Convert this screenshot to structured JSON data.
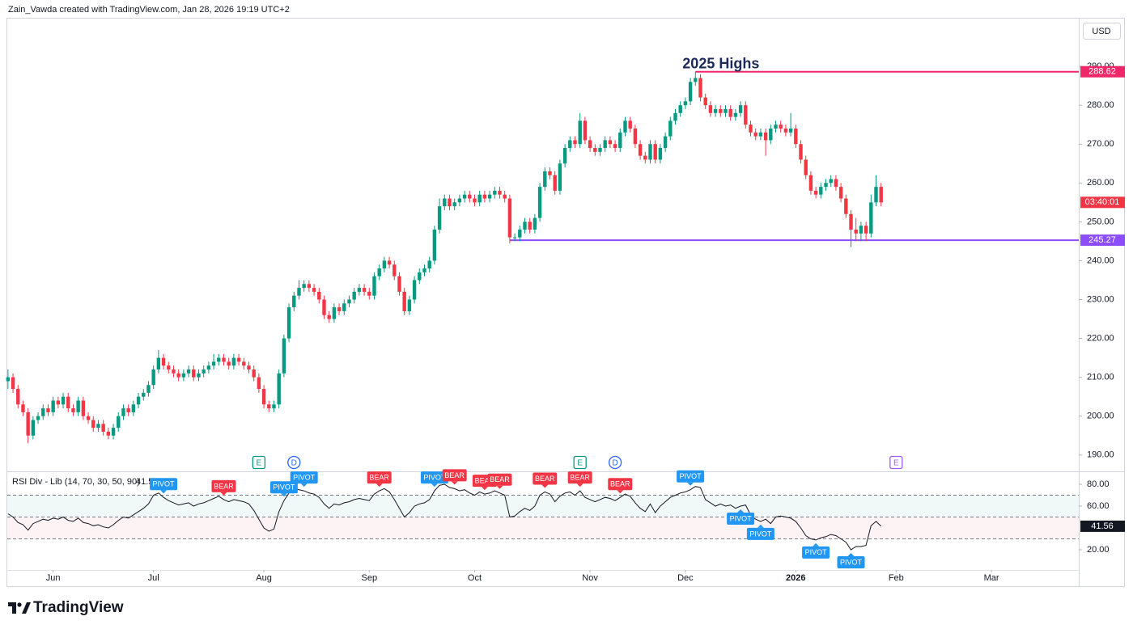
{
  "header": {
    "credit": "Zain_Vawda created with TradingView.com, Jan 28, 2026 19:19 UTC+2"
  },
  "chart_data": {
    "type": "candlestick",
    "currency": "USD",
    "up_color": "#089981",
    "down_color": "#f23645",
    "candles": [
      [
        209,
        212,
        207,
        210
      ],
      [
        210,
        211,
        206,
        207
      ],
      [
        207,
        208,
        202,
        203
      ],
      [
        203,
        204,
        200,
        201
      ],
      [
        201,
        202,
        193,
        195
      ],
      [
        195,
        200,
        194,
        199
      ],
      [
        199,
        201,
        198,
        200
      ],
      [
        200,
        203,
        199,
        202
      ],
      [
        202,
        203,
        200,
        201
      ],
      [
        201,
        205,
        200,
        204
      ],
      [
        204,
        205,
        202,
        203
      ],
      [
        203,
        206,
        202,
        205
      ],
      [
        205,
        206,
        201,
        202
      ],
      [
        202,
        203,
        200,
        201
      ],
      [
        201,
        205,
        200,
        204
      ],
      [
        204,
        205,
        199,
        200
      ],
      [
        200,
        201,
        198,
        199
      ],
      [
        199,
        200,
        196,
        197
      ],
      [
        197,
        199,
        196,
        198
      ],
      [
        198,
        199,
        195,
        196
      ],
      [
        196,
        197,
        194,
        195
      ],
      [
        195,
        198,
        194,
        197
      ],
      [
        197,
        201,
        196,
        200
      ],
      [
        200,
        203,
        199,
        202
      ],
      [
        202,
        203,
        200,
        201
      ],
      [
        201,
        204,
        200,
        203
      ],
      [
        203,
        206,
        202,
        205
      ],
      [
        205,
        207,
        204,
        206
      ],
      [
        206,
        209,
        205,
        208
      ],
      [
        208,
        213,
        207,
        212
      ],
      [
        212,
        217,
        211,
        215
      ],
      [
        215,
        216,
        212,
        213
      ],
      [
        213,
        214,
        211,
        212
      ],
      [
        212,
        213,
        210,
        211
      ],
      [
        211,
        212,
        209,
        210
      ],
      [
        210,
        212,
        209,
        211
      ],
      [
        211,
        213,
        210,
        212
      ],
      [
        212,
        213,
        209,
        210
      ],
      [
        210,
        212,
        209,
        211
      ],
      [
        211,
        213,
        210,
        212
      ],
      [
        212,
        214,
        211,
        213
      ],
      [
        213,
        216,
        212,
        214
      ],
      [
        214,
        216,
        213,
        215
      ],
      [
        215,
        216,
        213,
        214
      ],
      [
        214,
        215,
        212,
        213
      ],
      [
        213,
        216,
        212,
        215
      ],
      [
        215,
        216,
        213,
        214
      ],
      [
        214,
        215,
        212,
        213
      ],
      [
        213,
        214,
        211,
        212
      ],
      [
        212,
        213,
        209,
        210
      ],
      [
        210,
        211,
        206,
        207
      ],
      [
        207,
        208,
        202,
        203
      ],
      [
        203,
        204,
        201,
        202
      ],
      [
        202,
        204,
        201,
        203
      ],
      [
        203,
        212,
        202,
        211
      ],
      [
        211,
        221,
        210,
        220
      ],
      [
        220,
        229,
        219,
        228
      ],
      [
        228,
        232,
        227,
        231
      ],
      [
        231,
        235,
        230,
        233
      ],
      [
        233,
        235,
        232,
        234
      ],
      [
        234,
        235,
        232,
        233
      ],
      [
        233,
        234,
        231,
        232
      ],
      [
        232,
        233,
        229,
        230
      ],
      [
        230,
        231,
        225,
        226
      ],
      [
        226,
        227,
        224,
        225
      ],
      [
        225,
        229,
        224,
        228
      ],
      [
        228,
        229,
        226,
        227
      ],
      [
        227,
        230,
        226,
        229
      ],
      [
        229,
        231,
        228,
        230
      ],
      [
        230,
        233,
        229,
        232
      ],
      [
        232,
        234,
        231,
        233
      ],
      [
        233,
        234,
        231,
        232
      ],
      [
        232,
        233,
        230,
        231
      ],
      [
        231,
        237,
        230,
        236
      ],
      [
        236,
        239,
        235,
        238
      ],
      [
        238,
        241,
        237,
        240
      ],
      [
        240,
        241,
        238,
        239
      ],
      [
        239,
        240,
        235,
        236
      ],
      [
        236,
        237,
        231,
        232
      ],
      [
        232,
        233,
        226,
        227
      ],
      [
        227,
        231,
        226,
        230
      ],
      [
        230,
        236,
        229,
        235
      ],
      [
        235,
        238,
        234,
        237
      ],
      [
        237,
        239,
        236,
        238
      ],
      [
        238,
        241,
        237,
        240
      ],
      [
        240,
        249,
        239,
        248
      ],
      [
        248,
        256,
        247,
        254
      ],
      [
        254,
        257,
        253,
        256
      ],
      [
        256,
        257,
        253,
        254
      ],
      [
        254,
        256,
        253,
        255
      ],
      [
        255,
        257,
        254,
        256
      ],
      [
        256,
        258,
        255,
        257
      ],
      [
        257,
        258,
        255,
        256
      ],
      [
        256,
        257,
        254,
        255
      ],
      [
        255,
        258,
        254,
        257
      ],
      [
        257,
        258,
        255,
        256
      ],
      [
        256,
        258,
        255,
        257
      ],
      [
        257,
        259,
        256,
        258
      ],
      [
        258,
        259,
        256,
        257
      ],
      [
        257,
        258,
        255,
        256
      ],
      [
        256,
        257,
        244.5,
        246
      ],
      [
        246,
        247,
        245,
        246
      ],
      [
        246,
        249,
        245,
        248
      ],
      [
        248,
        251,
        247,
        250
      ],
      [
        250,
        251,
        247,
        248
      ],
      [
        248,
        252,
        247,
        251
      ],
      [
        251,
        260,
        250,
        259
      ],
      [
        259,
        264,
        258,
        263
      ],
      [
        263,
        264,
        261,
        262
      ],
      [
        262,
        263,
        257,
        258
      ],
      [
        258,
        266,
        257,
        265
      ],
      [
        265,
        270,
        264,
        269
      ],
      [
        269,
        272,
        268,
        271
      ],
      [
        271,
        272,
        269,
        270
      ],
      [
        270,
        278,
        269,
        276
      ],
      [
        276,
        277,
        270,
        271
      ],
      [
        271,
        272,
        268,
        269
      ],
      [
        269,
        270,
        267,
        268
      ],
      [
        268,
        270,
        267,
        269
      ],
      [
        269,
        272,
        268,
        271
      ],
      [
        271,
        272,
        269,
        270
      ],
      [
        270,
        271,
        268,
        269
      ],
      [
        269,
        274,
        268,
        273
      ],
      [
        273,
        277,
        272,
        276
      ],
      [
        276,
        277,
        273,
        274
      ],
      [
        274,
        275,
        269,
        270
      ],
      [
        270,
        271,
        266,
        267
      ],
      [
        267,
        268,
        265,
        266
      ],
      [
        266,
        271,
        265,
        270
      ],
      [
        270,
        271,
        265,
        266
      ],
      [
        266,
        270,
        265,
        269
      ],
      [
        269,
        273,
        268,
        272
      ],
      [
        272,
        277,
        271,
        276
      ],
      [
        276,
        279,
        275,
        278
      ],
      [
        278,
        281,
        277,
        280
      ],
      [
        280,
        282,
        279,
        281
      ],
      [
        281,
        287,
        280,
        286
      ],
      [
        286,
        288.62,
        285,
        287
      ],
      [
        287,
        288,
        281,
        282
      ],
      [
        282,
        283,
        279,
        280
      ],
      [
        280,
        281,
        277,
        278
      ],
      [
        278,
        280,
        277,
        279
      ],
      [
        279,
        280,
        277,
        278
      ],
      [
        278,
        280,
        277,
        279
      ],
      [
        279,
        280,
        276,
        277
      ],
      [
        277,
        279,
        276,
        278
      ],
      [
        278,
        281,
        277,
        280
      ],
      [
        280,
        281,
        274,
        275
      ],
      [
        275,
        276,
        272,
        273
      ],
      [
        273,
        274,
        271,
        272
      ],
      [
        272,
        274,
        271,
        273
      ],
      [
        273,
        274,
        267,
        271
      ],
      [
        271,
        275,
        270,
        274
      ],
      [
        274,
        276,
        273,
        275
      ],
      [
        275,
        276,
        273,
        274
      ],
      [
        274,
        275,
        272,
        273
      ],
      [
        273,
        278,
        272,
        274
      ],
      [
        274,
        275,
        269,
        270
      ],
      [
        270,
        271,
        265,
        266
      ],
      [
        266,
        267,
        261,
        262
      ],
      [
        262,
        263,
        257,
        258
      ],
      [
        258,
        259,
        256,
        257
      ],
      [
        257,
        260,
        256,
        259
      ],
      [
        259,
        261,
        258,
        260
      ],
      [
        260,
        262,
        259,
        261
      ],
      [
        261,
        262,
        258,
        259
      ],
      [
        259,
        260,
        255,
        256
      ],
      [
        256,
        257,
        251,
        252
      ],
      [
        252,
        253,
        243.5,
        248
      ],
      [
        248,
        251,
        245,
        247
      ],
      [
        247,
        250,
        245,
        249
      ],
      [
        249,
        250,
        245,
        247
      ],
      [
        247,
        257,
        246,
        255
      ],
      [
        255,
        262,
        254,
        259
      ],
      [
        259,
        260,
        254,
        255
      ]
    ],
    "xlim": [
      -0.3,
      213.4
    ],
    "xticks": [
      {
        "value": 9,
        "label": "Jun"
      },
      {
        "value": 29,
        "label": "Jul"
      },
      {
        "value": 51,
        "label": "Aug"
      },
      {
        "value": 72,
        "label": "Sep"
      },
      {
        "value": 93,
        "label": "Oct"
      },
      {
        "value": 116,
        "label": "Nov"
      },
      {
        "value": 135,
        "label": "Dec"
      },
      {
        "value": 157,
        "label": "2026",
        "bold": true
      },
      {
        "value": 177,
        "label": "Feb"
      },
      {
        "value": 196,
        "label": "Mar"
      }
    ],
    "ylim": [
      186,
      302.5
    ],
    "yticks": [
      {
        "value": 190,
        "label": "190.00"
      },
      {
        "value": 200,
        "label": "200.00"
      },
      {
        "value": 210,
        "label": "210.00"
      },
      {
        "value": 220,
        "label": "220.00"
      },
      {
        "value": 230,
        "label": "230.00"
      },
      {
        "value": 240,
        "label": "240.00"
      },
      {
        "value": 250,
        "label": "250.00"
      },
      {
        "value": 260,
        "label": "260.00"
      },
      {
        "value": 270,
        "label": "270.00"
      },
      {
        "value": 280,
        "label": "280.00"
      },
      {
        "value": 290,
        "label": "290.00"
      }
    ],
    "levels": [
      {
        "value": 288.62,
        "color": "#f0286a",
        "from": 137,
        "text": "2025 Highs"
      },
      {
        "value": 245.27,
        "color": "#8c4dfa",
        "from": 100
      }
    ],
    "countdown": "03:40:01",
    "events": [
      {
        "label": "E",
        "x": 50,
        "kind": "earnings",
        "color": "#089981"
      },
      {
        "label": "D",
        "x": 57,
        "kind": "dividend",
        "color": "#2962ff"
      },
      {
        "label": "E",
        "x": 114,
        "kind": "earnings",
        "color": "#089981"
      },
      {
        "label": "D",
        "x": 121,
        "kind": "dividend",
        "color": "#2962ff"
      },
      {
        "label": "E",
        "x": 177,
        "kind": "earnings",
        "color": "#9c5cf5"
      }
    ],
    "rsi": {
      "title": "RSI Div - Lib (14, 70, 30, 50, 90)",
      "color": "#131722",
      "values": [
        53,
        50,
        45,
        43,
        38,
        44,
        46,
        48,
        47,
        49,
        48,
        50,
        47,
        46,
        49,
        45,
        44,
        42,
        43,
        41,
        40,
        43,
        47,
        50,
        49,
        52,
        55,
        58,
        62,
        70,
        72,
        68,
        65,
        63,
        61,
        62,
        63,
        60,
        62,
        63,
        65,
        67,
        69,
        66,
        64,
        66,
        65,
        64,
        62,
        56,
        48,
        40,
        37,
        39,
        55,
        65,
        72,
        76,
        75,
        74,
        72,
        71,
        68,
        62,
        58,
        62,
        61,
        63,
        64,
        66,
        67,
        66,
        65,
        71,
        74,
        76,
        73,
        66,
        58,
        50,
        54,
        60,
        62,
        63,
        66,
        74,
        79,
        80,
        77,
        76,
        74,
        75,
        72,
        70,
        73,
        71,
        72,
        74,
        72,
        70,
        50,
        51,
        55,
        58,
        56,
        60,
        70,
        73,
        71,
        64,
        69,
        72,
        73,
        70,
        74,
        68,
        66,
        64,
        66,
        68,
        67,
        65,
        68,
        71,
        69,
        63,
        58,
        55,
        62,
        54,
        60,
        64,
        68,
        70,
        72,
        73,
        75,
        78,
        77,
        66,
        63,
        60,
        62,
        60,
        61,
        58,
        60,
        61,
        52,
        48,
        46,
        48,
        44,
        50,
        51,
        50,
        49,
        46,
        40,
        33,
        30,
        29,
        31,
        32,
        34,
        33,
        30,
        27,
        20,
        23,
        23,
        24,
        42,
        46,
        41.56
      ],
      "ylim": [
        1.5,
        91.1
      ],
      "yticks": [
        {
          "value": 20,
          "label": "20.00"
        },
        {
          "value": 60,
          "label": "60.00"
        },
        {
          "value": 80,
          "label": "80.00"
        }
      ],
      "levels": [
        70,
        50,
        30
      ],
      "signals": [
        {
          "label": "PIVOT",
          "x": 31,
          "side": "above"
        },
        {
          "label": "BEAR",
          "x": 43,
          "side": "above"
        },
        {
          "label": "PIVOT",
          "x": 55,
          "side": "above"
        },
        {
          "label": "PIVOT",
          "x": 59,
          "side": "above"
        },
        {
          "label": "BEAR",
          "x": 74,
          "side": "above"
        },
        {
          "label": "PIVOT",
          "x": 85,
          "side": "above"
        },
        {
          "label": "BEAR",
          "x": 89,
          "side": "above"
        },
        {
          "label": "BEAR",
          "x": 95,
          "side": "above"
        },
        {
          "label": "BEAR",
          "x": 98,
          "side": "above"
        },
        {
          "label": "BEAR",
          "x": 107,
          "side": "above"
        },
        {
          "label": "BEAR",
          "x": 114,
          "side": "above"
        },
        {
          "label": "BEAR",
          "x": 122,
          "side": "above"
        },
        {
          "label": "PIVOT",
          "x": 136,
          "side": "above"
        },
        {
          "label": "PIVOT",
          "x": 146,
          "side": "below"
        },
        {
          "label": "PIVOT",
          "x": 150,
          "side": "below"
        },
        {
          "label": "PIVOT",
          "x": 161,
          "side": "below"
        },
        {
          "label": "PIVOT",
          "x": 168,
          "side": "below"
        }
      ]
    }
  },
  "footer": {
    "brand": "TradingView"
  }
}
